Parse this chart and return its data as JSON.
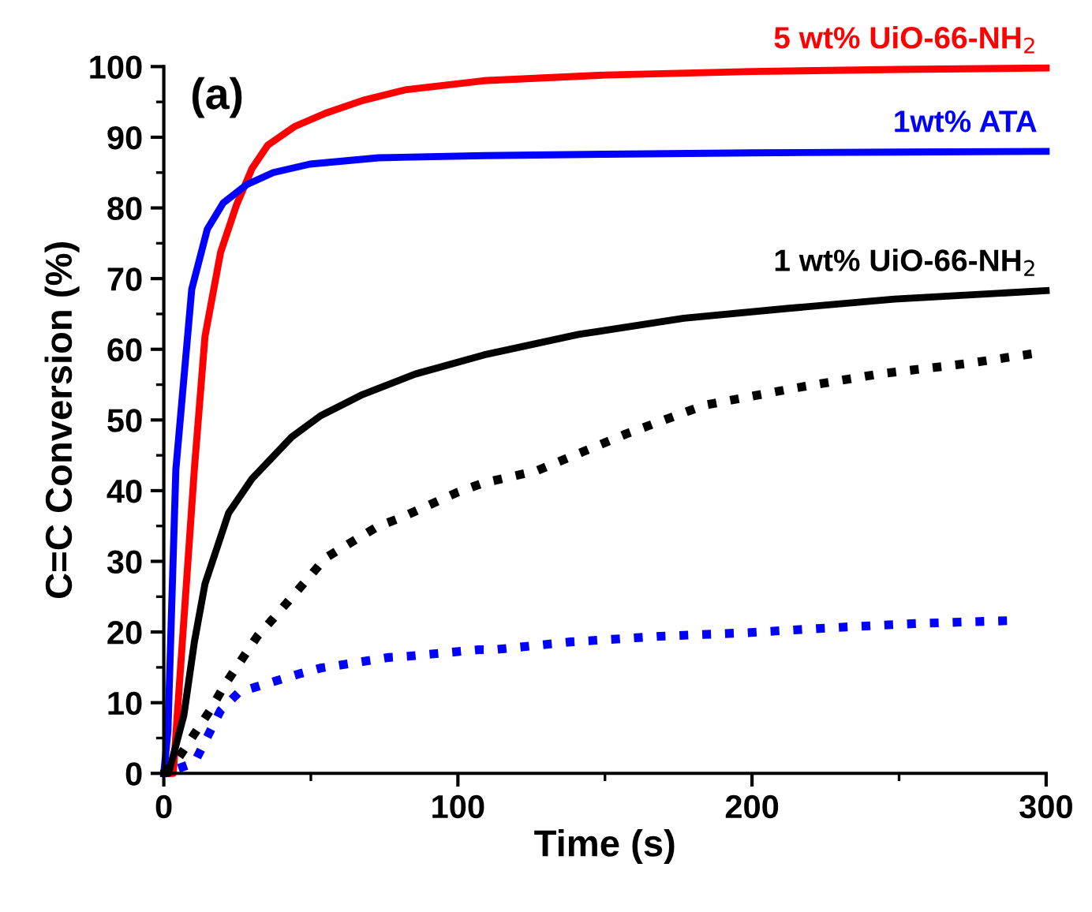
{
  "chart_data": {
    "type": "line",
    "xlabel": "Time (s)",
    "ylabel": "C=C Conversion (%)",
    "xlim": [
      0,
      300
    ],
    "ylim": [
      0,
      100
    ],
    "xticks": [
      0,
      100,
      200,
      300
    ],
    "yticks": [
      0,
      10,
      20,
      30,
      40,
      50,
      60,
      70,
      80,
      90,
      100
    ],
    "grid": false,
    "legend": false,
    "marker": "none",
    "annotations": [
      "(a)"
    ],
    "series": [
      {
        "name": "5 wt% UiO-66-NH$_{2}$",
        "color": "#ff0000",
        "line_style": "solid",
        "x": [
          0,
          3.2,
          10.4,
          14,
          19.3,
          24.7,
          30,
          35.4,
          44.4,
          55,
          67.6,
          82,
          108.8,
          150,
          200,
          250,
          300
        ],
        "values": [
          0,
          0,
          43.1,
          61.8,
          73.7,
          80.4,
          85.6,
          88.9,
          91.5,
          93.4,
          95.2,
          96.7,
          98,
          98.8,
          99.3,
          99.6,
          99.8
        ]
      },
      {
        "name": "1wt% ATA",
        "color": "#0000ff",
        "line_style": "solid",
        "x": [
          0,
          1.4,
          4.1,
          9.5,
          14.8,
          20.2,
          28.2,
          37.2,
          49.7,
          73,
          109,
          150,
          200,
          250,
          300
        ],
        "values": [
          0,
          6,
          43,
          68.5,
          77,
          80.7,
          83.3,
          85,
          86.2,
          87.1,
          87.4,
          87.6,
          87.8,
          87.9,
          88
        ]
      },
      {
        "name": "1 wt% UiO-66-NH$_{2}$",
        "color": "#000000",
        "line_style": "solid",
        "x": [
          0,
          1.6,
          6.8,
          10.4,
          14,
          22,
          30,
          43.5,
          53.3,
          67.6,
          85.5,
          108.8,
          141,
          176.8,
          212.6,
          248.4,
          300
        ],
        "values": [
          0,
          0,
          8.2,
          18.6,
          26.8,
          36.8,
          41.7,
          47.6,
          50.6,
          53.6,
          56.5,
          59.2,
          62.1,
          64.4,
          65.8,
          67.1,
          68.3
        ]
      },
      {
        "color": "#000000",
        "line_style": "dotted",
        "x": [
          0,
          5,
          15.7,
          21,
          31.8,
          37.2,
          49.7,
          55,
          73,
          80.2,
          100,
          108.8,
          126.7,
          157,
          183.9,
          214.4,
          243,
          273.4,
          297.5
        ],
        "values": [
          0,
          2.2,
          8.9,
          12.7,
          19.4,
          21.9,
          27.9,
          30.5,
          35,
          36.1,
          39.8,
          41.1,
          42.8,
          48,
          52.1,
          54.5,
          56.5,
          58,
          59.5
        ]
      },
      {
        "color": "#0000ff",
        "line_style": "dotted",
        "x": [
          5,
          10.4,
          19.3,
          25.6,
          46.2,
          53.3,
          76.5,
          83.7,
          107,
          112.3,
          138.3,
          168.7,
          198.2,
          226.8,
          255.5,
          286.8
        ],
        "values": [
          0.7,
          1.5,
          8.9,
          11.5,
          14.1,
          14.9,
          16.4,
          16.6,
          17.5,
          17.5,
          18.6,
          19.4,
          19.9,
          20.6,
          21.2,
          21.6
        ]
      }
    ]
  }
}
